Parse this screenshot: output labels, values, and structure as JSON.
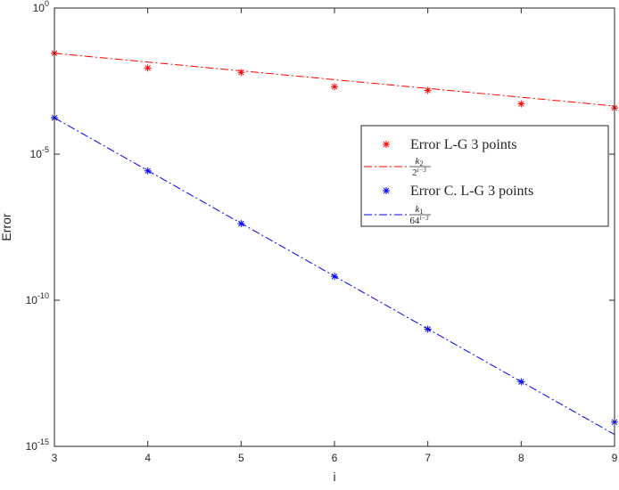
{
  "chart_data": {
    "type": "line",
    "title": "",
    "xlabel": "i",
    "ylabel": "Error",
    "xlim": [
      3,
      9
    ],
    "ylim": [
      1e-15,
      1
    ],
    "yscale": "log",
    "grid": false,
    "legend_position": "right",
    "x": [
      3,
      4,
      5,
      6,
      7,
      8,
      9
    ],
    "x_ticks": [
      "3",
      "4",
      "5",
      "6",
      "7",
      "8",
      "9"
    ],
    "y_ticks": [
      {
        "value": 1,
        "base": "10",
        "exp": "0"
      },
      {
        "value": 1e-05,
        "base": "10",
        "exp": "-5"
      },
      {
        "value": 1e-10,
        "base": "10",
        "exp": "-10"
      },
      {
        "value": 1e-15,
        "base": "10",
        "exp": "-15"
      }
    ],
    "series": [
      {
        "name": "Error L-G 3 points",
        "kind": "marker",
        "marker": "asterisk",
        "color": "#ff0000",
        "x": [
          3,
          4,
          5,
          6,
          7,
          8,
          9
        ],
        "values": [
          0.0283,
          0.00886,
          0.00624,
          0.00203,
          0.00152,
          0.000526,
          0.000381
        ]
      },
      {
        "name_num": "k",
        "name_num_sub": "2",
        "name_den": "2",
        "name_den_sup": "i−3",
        "kind": "line",
        "dash": "dashdot",
        "color": "#ff0000",
        "x": [
          3,
          9
        ],
        "values": [
          0.0283,
          0.000443
        ]
      },
      {
        "name": "Error C. L-G 3 points",
        "kind": "marker",
        "marker": "asterisk",
        "color": "#0000ff",
        "x": [
          3,
          4,
          5,
          6,
          7,
          8,
          9
        ],
        "values": [
          0.000175,
          2.67e-06,
          4.19e-08,
          6.55e-10,
          1.02e-11,
          1.61e-13,
          6.75e-15
        ]
      },
      {
        "name_num": "k",
        "name_num_sub": "1",
        "name_den": "64",
        "name_den_sup": "i−3",
        "kind": "line",
        "dash": "dashdot",
        "color": "#0000ff",
        "x": [
          3,
          9
        ],
        "values": [
          0.000175,
          2.55e-15
        ]
      }
    ]
  }
}
